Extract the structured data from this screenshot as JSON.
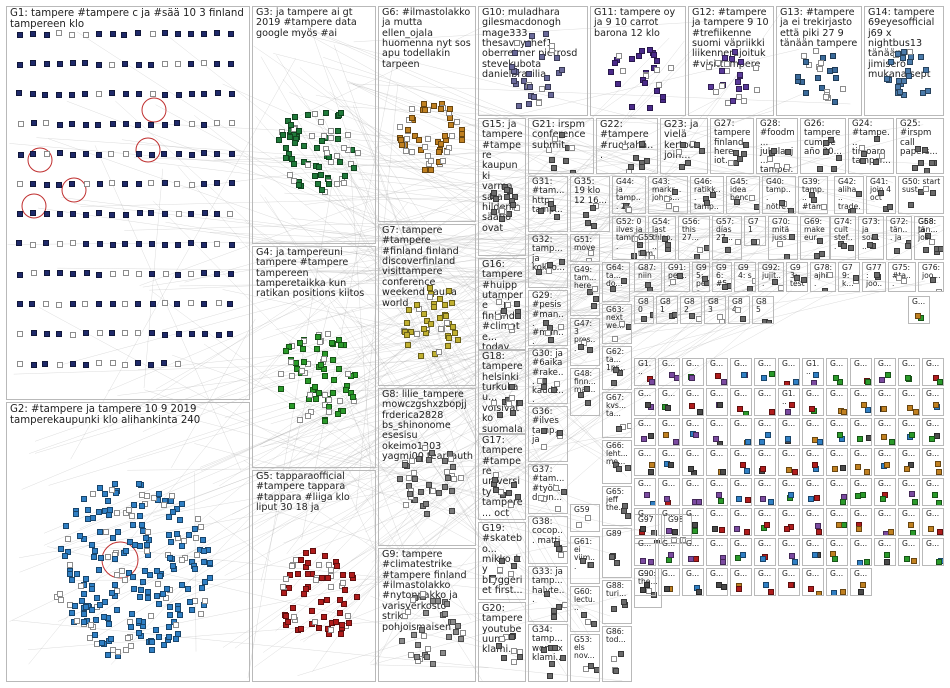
{
  "groups": [
    {
      "id": "G1",
      "text": "G1: tampere #tampere c ja #sää 10 3 finland tampereen klo",
      "color": "#1f2a6a"
    },
    {
      "id": "G2",
      "text": "G2: #tampere ja tampere 10 9 2019 tamperekaupunki klo alihankinta 240",
      "color": "#2f7fc4"
    },
    {
      "id": "G3",
      "text": "G3: ja tampere ai gt 2019 #tampere data google myös #ai",
      "color": "#1f7a3a"
    },
    {
      "id": "G4",
      "text": "G4: ja tampereuni tampere #tampere tampereen tamperetaikka kun ratikan positions kiitos",
      "color": "#2a9a2a"
    },
    {
      "id": "G5",
      "text": "G5: tapparaofficial #tampere tappara #tappara #liiga klo liput 30 18 ja",
      "color": "#b01c1c"
    },
    {
      "id": "G6",
      "text": "G6: #ilmastolakko ja mutta ellen_ojala huomenna nyt sos apu todellakin tarpeen",
      "color": "#c08020"
    },
    {
      "id": "G7",
      "text": "G7: tampere #tampere #finland finland discoverfinland visittampere conference weekend sauna world",
      "color": "#c0b030"
    },
    {
      "id": "G8",
      "text": "G8: lilie_tampere mowczgshxzbopjj frderica2828 bs_shinonome esesisu okeimo1203 yagmi00 tear_auth",
      "color": "#7a7a7a"
    },
    {
      "id": "G9",
      "text": "G9: tampere #climatestrike #tampere finland #ilmastolakko #nytonpakko ja varisverkosto strike pohjoismaisen",
      "color": "#8a8a8a"
    },
    {
      "id": "G10",
      "text": "G10: muladhara gilesmacdonogh mage333 thesavvychef1 oberreimer pietrosd stevekubota danielbrasilia",
      "color": "#6a6a9a"
    },
    {
      "id": "G11",
      "text": "G11: tampere oy ja 9 10 carrot barona 12 klo",
      "color": "#4a2a8a"
    },
    {
      "id": "G12",
      "text": "G12: #tampere ja tampere 9 10 #trefiikenne suomi väpriikki liikennerajoituk #visittampere",
      "color": "#5a3a9a"
    },
    {
      "id": "G13",
      "text": "G13: #tampere ja ei trekirjasto että piki 27 9 tänään tampere",
      "color": "#3a6a9a"
    },
    {
      "id": "G14",
      "text": "G14: tampere 69eyesofficial j69 x nightbus13 tänään jimisero mukana sept",
      "color": "#4a7aaa"
    },
    {
      "id": "G15",
      "text": "G15: ja tampere #tampere kaupunki varma sara hildenin säätiö ovat",
      "color": "#6a6a6a"
    },
    {
      "id": "G16",
      "text": "G16: tampere #huipputampere finland #climate... today people ja...",
      "color": "#6a6a6a"
    },
    {
      "id": "G17",
      "text": "G17: tampere #tampere university tampere... oct",
      "color": "#6a6a6a"
    },
    {
      "id": "G18",
      "text": "G18: tampere helsinki turkukau... voisivatko suomalai...",
      "color": "#6a6a6a"
    },
    {
      "id": "G19",
      "text": "G19: #skatebo... mikko_ky bryggeriet first...",
      "color": "#6a6a6a"
    },
    {
      "id": "G20",
      "text": "G20: tampere youtube uuno klami...",
      "color": "#6a6a6a"
    },
    {
      "id": "G21",
      "text": "G21: irspm conference submit...",
      "color": "#6a6a6a"
    },
    {
      "id": "G22",
      "text": "G22: #tampere #ruokahä...",
      "color": "#6a6a6a"
    },
    {
      "id": "G23",
      "text": "G23: ja vielä kertoo join...",
      "color": "#6a6a6a"
    },
    {
      "id": "G24",
      "text": "G24: #tampe... timoaro tamper...",
      "color": "#6a6a6a"
    },
    {
      "id": "G25",
      "text": "G25: #irspm call papers...",
      "color": "#6a6a6a"
    },
    {
      "id": "G26",
      "text": "G26: tampere cumple año 20...",
      "color": "#6a6a6a"
    },
    {
      "id": "G27",
      "text": "G27: tampere finland here iot...",
      "color": "#6a6a6a"
    },
    {
      "id": "G28",
      "text": "G28: #foodm... jukolanj... tamper...",
      "color": "#6a6a6a"
    },
    {
      "id": "G29",
      "text": "G29: #pesis #man... #man...",
      "color": "#6a6a6a"
    },
    {
      "id": "G30",
      "text": "G30: ja #6aika #rake... kaude...",
      "color": "#6a6a6a"
    },
    {
      "id": "G31",
      "text": "G31: #tam... https tamp...",
      "color": "#6a6a6a"
    },
    {
      "id": "G32",
      "text": "G32: tamp... ja kokko...",
      "color": "#6a6a6a"
    },
    {
      "id": "G33",
      "text": "G33: ja tamp... halyte...",
      "color": "#6a6a6a"
    },
    {
      "id": "G34",
      "text": "G34: tamp... womex klami...",
      "color": "#6a6a6a"
    },
    {
      "id": "G35",
      "text": "G35: 19 klo 12 16...",
      "color": "#6a6a6a"
    },
    {
      "id": "G36",
      "text": "G36: #ilves tamp... ja",
      "color": "#6a6a6a"
    },
    {
      "id": "G37",
      "text": "G37: #tam... #työl... duun...",
      "color": "#6a6a6a"
    },
    {
      "id": "G38",
      "text": "G38: cocop... matti",
      "color": "#6a6a6a"
    },
    {
      "id": "G39",
      "text": "G39: tamp... #tam...",
      "color": "#6a6a6a"
    },
    {
      "id": "G40",
      "text": "G40: tamp... nötre...",
      "color": "#6a6a6a"
    },
    {
      "id": "G41",
      "text": "G41: join 4 oct",
      "color": "#6a6a6a"
    },
    {
      "id": "G42",
      "text": "G42: aliha... trade...",
      "color": "#6a6a6a"
    },
    {
      "id": "G43",
      "text": "G43: markr... johns...",
      "color": "#6a6a6a"
    },
    {
      "id": "G44",
      "text": "G44: ja tamp... 27",
      "color": "#6a6a6a"
    },
    {
      "id": "G45",
      "text": "G45: idea benc...",
      "color": "#6a6a6a"
    },
    {
      "id": "G46",
      "text": "G46: ratikk... tamp...",
      "color": "#6a6a6a"
    },
    {
      "id": "G47",
      "text": "G47: 3 pres...",
      "color": "#6a6a6a"
    },
    {
      "id": "G48",
      "text": "G48: finn... mal...",
      "color": "#6a6a6a"
    },
    {
      "id": "G49",
      "text": "G49: tam... here",
      "color": "#6a6a6a"
    },
    {
      "id": "G50",
      "text": "G50: start sust...",
      "color": "#6a6a6a"
    },
    {
      "id": "G51",
      "text": "G51: move",
      "color": "#6a6a6a"
    },
    {
      "id": "G52",
      "text": "G52: 0 ilves ja tamp...",
      "color": "#6a6a6a"
    },
    {
      "id": "G53",
      "text": "G53: els nov...",
      "color": "#6a6a6a"
    },
    {
      "id": "G54",
      "text": "G54: last thlso...",
      "color": "#6a6a6a"
    },
    {
      "id": "G55",
      "text": "G55: tamp... ja",
      "color": "#6a6a6a"
    },
    {
      "id": "G56",
      "text": "G56: this 27...",
      "color": "#6a6a6a"
    },
    {
      "id": "G57",
      "text": "G57: días 27...",
      "color": "#6a6a6a"
    },
    {
      "id": "G58",
      "text": "G58: ja",
      "color": "#6a6a6a"
    },
    {
      "id": "G59",
      "text": "G59",
      "color": "#6a6a6a"
    },
    {
      "id": "G60",
      "text": "G60: lectu...",
      "color": "#6a6a6a"
    },
    {
      "id": "G61",
      "text": "G61: ei viim...",
      "color": "#6a6a6a"
    },
    {
      "id": "G62",
      "text": "G62: ta... 1pr...",
      "color": "#6a6a6a"
    },
    {
      "id": "G63",
      "text": "G63: next we...",
      "color": "#6a6a6a"
    },
    {
      "id": "G64",
      "text": "G64: ta... do...",
      "color": "#6a6a6a"
    },
    {
      "id": "G65",
      "text": "G65: jeff the...",
      "color": "#6a6a6a"
    },
    {
      "id": "G66",
      "text": "G66: leht... me...",
      "color": "#6a6a6a"
    },
    {
      "id": "G67",
      "text": "G67: kvs... ta...",
      "color": "#6a6a6a"
    },
    {
      "id": "G68",
      "text": "G68: tän... jos...",
      "color": "#6a6a6a"
    },
    {
      "id": "G69",
      "text": "G69: make eur...",
      "color": "#6a6a6a"
    },
    {
      "id": "G70",
      "text": "G70: mitä juss...",
      "color": "#6a6a6a"
    },
    {
      "id": "G71",
      "text": "G71",
      "color": "#6a6a6a"
    },
    {
      "id": "G72",
      "text": "G72: tän... ja",
      "color": "#6a6a6a"
    },
    {
      "id": "G73",
      "text": "G73: ja soal...",
      "color": "#6a6a6a"
    },
    {
      "id": "G74",
      "text": "G74: cult stef...",
      "color": "#6a6a6a"
    },
    {
      "id": "G75",
      "text": "G75: #ta...",
      "color": "#6a6a6a"
    },
    {
      "id": "G76",
      "text": "G76: joo...",
      "color": "#6a6a6a"
    },
    {
      "id": "G77",
      "text": "G77: joo...",
      "color": "#6a6a6a"
    },
    {
      "id": "G78",
      "text": "G78: ajhi...",
      "color": "#6a6a6a"
    },
    {
      "id": "G79",
      "text": "G79: k...",
      "color": "#6a6a6a"
    },
    {
      "id": "G80",
      "text": "G80",
      "color": "#6a6a6a"
    },
    {
      "id": "G81",
      "text": "G81",
      "color": "#6a6a6a"
    },
    {
      "id": "G82",
      "text": "G82",
      "color": "#6a6a6a"
    },
    {
      "id": "G83",
      "text": "G83",
      "color": "#6a6a6a"
    },
    {
      "id": "G84",
      "text": "G84",
      "color": "#6a6a6a"
    },
    {
      "id": "G85",
      "text": "G85",
      "color": "#6a6a6a"
    },
    {
      "id": "G86",
      "text": "G86: tod...",
      "color": "#6a6a6a"
    },
    {
      "id": "G87",
      "text": "G87: niin",
      "color": "#6a6a6a"
    },
    {
      "id": "G88",
      "text": "G88: turi...",
      "color": "#6a6a6a"
    },
    {
      "id": "G89",
      "text": "G89",
      "color": "#6a6a6a"
    },
    {
      "id": "G90",
      "text": "G90: the...",
      "color": "#6a6a6a"
    },
    {
      "id": "G91",
      "text": "G91: pea...",
      "color": "#6a6a6a"
    },
    {
      "id": "G92",
      "text": "G92: jujit...",
      "color": "#6a6a6a"
    },
    {
      "id": "G93",
      "text": "G93: test...",
      "color": "#6a6a6a"
    },
    {
      "id": "G94",
      "text": "G94: s",
      "color": "#6a6a6a"
    },
    {
      "id": "G95",
      "text": "G95: pea...",
      "color": "#6a6a6a"
    },
    {
      "id": "G96",
      "text": "G96: #5",
      "color": "#6a6a6a"
    },
    {
      "id": "G97",
      "text": "G97",
      "color": "#6a6a6a"
    },
    {
      "id": "G98",
      "text": "G98",
      "color": "#6a6a6a"
    }
  ],
  "tiny_cell_labels": [
    "G...",
    "G1...",
    "G...",
    "G...",
    "G...",
    "G...",
    "G...",
    "G...",
    "G1...",
    "G...",
    "G...",
    "G...",
    "G...",
    "G...",
    "G...",
    "G...",
    "G...",
    "G...",
    "G...",
    "G...",
    "G1...",
    "G...",
    "G...",
    "G...",
    "G...",
    "G...",
    "G...",
    "G...",
    "G...",
    "G...",
    "G...",
    "G...",
    "G...",
    "G...",
    "G...",
    "G...",
    "G...",
    "G...",
    "G...",
    "G...",
    "G...",
    "G...",
    "G...",
    "G...",
    "G...",
    "G...",
    "G...",
    "G...",
    "G...",
    "G...",
    "G...",
    "G...",
    "G...",
    "G...",
    "G...",
    "G...",
    "G...",
    "G...",
    "G...",
    "G...",
    "G...",
    "G...",
    "G...",
    "G...",
    "G...",
    "G...",
    "G...",
    "G...",
    "G...",
    "G...",
    "G...",
    "G...",
    "G...",
    "G...",
    "G...",
    "G...",
    "G...",
    "G...",
    "G...",
    "G...",
    "G...",
    "G...",
    "G...",
    "G...",
    "G...",
    "G...",
    "G...",
    "G...",
    "G...",
    "G...",
    "G...",
    "G...",
    "G...",
    "G...",
    "G...",
    "G...",
    "G...",
    "G...",
    "G...",
    "G...",
    "G...",
    "G..."
  ]
}
